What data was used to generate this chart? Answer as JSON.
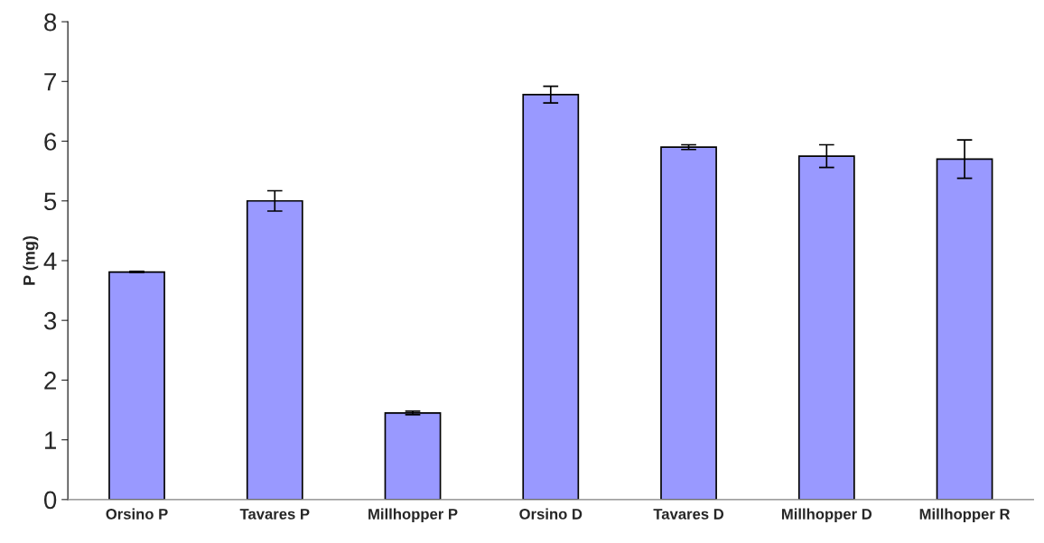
{
  "chart_data": {
    "type": "bar",
    "ylabel": "P (mg)",
    "categories": [
      "Orsino P",
      "Tavares P",
      "Millhopper P",
      "Orsino D",
      "Tavares D",
      "Millhopper D",
      "Millhopper R"
    ],
    "values": [
      3.81,
      5.0,
      1.45,
      6.78,
      5.9,
      5.75,
      5.7
    ],
    "errors": [
      0.01,
      0.17,
      0.03,
      0.14,
      0.04,
      0.19,
      0.32
    ],
    "color": "#9999ff",
    "ylim": [
      0,
      8
    ],
    "yticks": [
      0,
      1,
      2,
      3,
      4,
      5,
      6,
      7,
      8
    ],
    "grid": false
  }
}
